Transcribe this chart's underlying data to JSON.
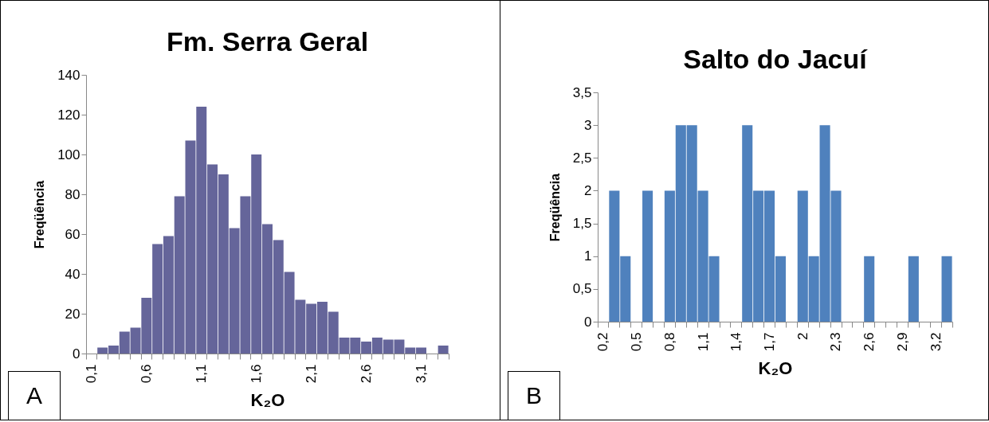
{
  "chart_data": [
    {
      "type": "bar",
      "title": "Fm. Serra Geral",
      "xlabel": "K₂O",
      "ylabel": "Freqüência",
      "annotations": [
        "A"
      ],
      "categories": [
        "0,1",
        null,
        null,
        null,
        null,
        "0,6",
        null,
        null,
        null,
        null,
        "1,1",
        null,
        null,
        null,
        null,
        "1,6",
        null,
        null,
        null,
        null,
        "2,1",
        null,
        null,
        null,
        null,
        "2,6",
        null,
        null,
        null,
        null,
        "3,1",
        null,
        null
      ],
      "values": [
        0,
        3,
        4,
        11,
        13,
        28,
        55,
        59,
        79,
        107,
        124,
        95,
        90,
        63,
        79,
        100,
        65,
        57,
        41,
        27,
        25,
        26,
        21,
        8,
        8,
        6,
        8,
        7,
        7,
        3,
        3,
        0,
        4
      ],
      "color": "#65659a",
      "ylim": [
        0,
        140
      ],
      "yticks": [
        0,
        20,
        40,
        60,
        80,
        100,
        120,
        140
      ],
      "grid": false
    },
    {
      "type": "bar",
      "title": "Salto do Jacuí",
      "xlabel": "K₂O",
      "ylabel": "Freqüência",
      "annotations": [
        "B"
      ],
      "categories": [
        "0,2",
        null,
        null,
        "0,5",
        null,
        null,
        "0,8",
        null,
        null,
        "1,1",
        null,
        null,
        "1,4",
        null,
        null,
        "1,7",
        null,
        null,
        "2",
        null,
        null,
        "2,3",
        null,
        null,
        "2,6",
        null,
        null,
        "2,9",
        null,
        null,
        "3,2",
        null
      ],
      "values": [
        0,
        2,
        1,
        0,
        2,
        0,
        2,
        3,
        3,
        2,
        1,
        0,
        0,
        3,
        2,
        2,
        1,
        0,
        2,
        1,
        3,
        2,
        0,
        0,
        1,
        0,
        0,
        0,
        1,
        0,
        0,
        1
      ],
      "color": "#4f81bd",
      "ylim": [
        0,
        3.5
      ],
      "yticks": [
        0,
        {
          "value": 0.5,
          "label": "0,5"
        },
        1,
        {
          "value": 1.5,
          "label": "1,5"
        },
        2,
        {
          "value": 2.5,
          "label": "2,5"
        },
        3,
        {
          "value": 3.5,
          "label": "3,5"
        }
      ],
      "grid": false
    }
  ]
}
